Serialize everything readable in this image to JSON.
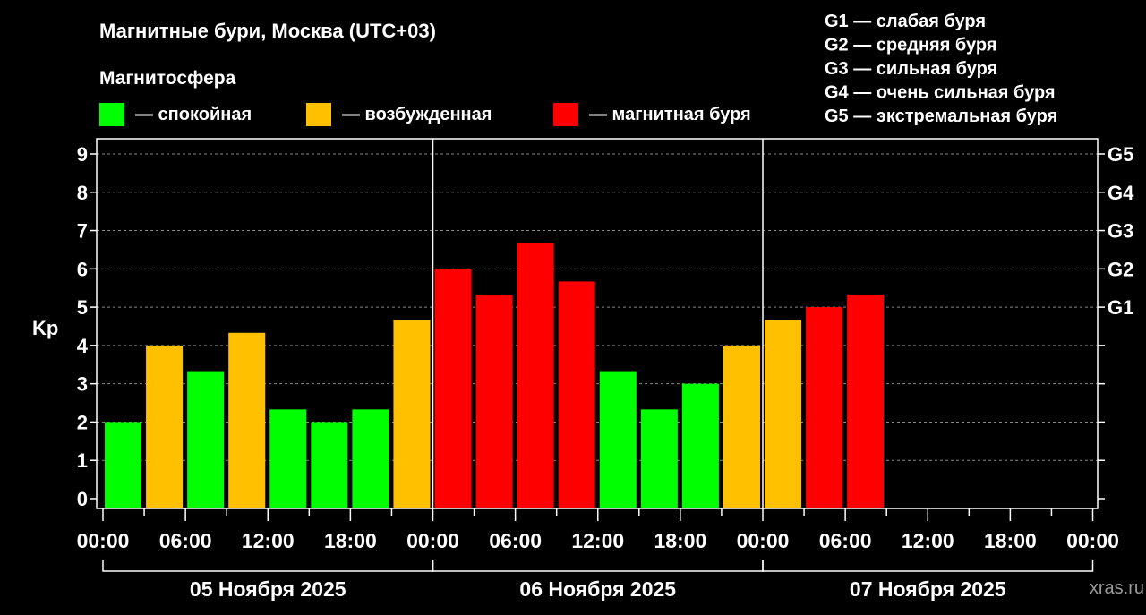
{
  "chart_data": {
    "type": "bar",
    "title": "Магнитные бури, Москва (UTC+03)",
    "legend_title": "Магнитосфера",
    "legend": [
      {
        "label": "— спокойная",
        "color": "#00ff00"
      },
      {
        "label": "— возбужденная",
        "color": "#ffc000"
      },
      {
        "label": "— магнитная буря",
        "color": "#ff0000"
      }
    ],
    "storm_scale": [
      "G1 — слабая буря",
      "G2 — средняя буря",
      "G3 — сильная буря",
      "G4 — очень сильная буря",
      "G5 — экстремальная буря"
    ],
    "ylabel": "Kp",
    "ylim": [
      0,
      9
    ],
    "yticks": [
      0,
      1,
      2,
      3,
      4,
      5,
      6,
      7,
      8,
      9
    ],
    "right_ticks": [
      {
        "value": 5,
        "label": "G1"
      },
      {
        "value": 6,
        "label": "G2"
      },
      {
        "value": 7,
        "label": "G3"
      },
      {
        "value": 8,
        "label": "G4"
      },
      {
        "value": 9,
        "label": "G5"
      }
    ],
    "xtick_labels": [
      "00:00",
      "06:00",
      "12:00",
      "18:00",
      "00:00",
      "06:00",
      "12:00",
      "18:00",
      "00:00",
      "06:00",
      "12:00",
      "18:00",
      "00:00"
    ],
    "days": [
      "05 Ноября 2025",
      "06 Ноября 2025",
      "07 Ноября 2025"
    ],
    "interval_hours": 3,
    "grid": true,
    "values": [
      2,
      4,
      3.33,
      4.33,
      2.33,
      2,
      2.33,
      4.67,
      6,
      5.33,
      6.67,
      5.67,
      3.33,
      2.33,
      3,
      4,
      4.67,
      5,
      5.33
    ],
    "levels": [
      "quiet",
      "active",
      "quiet",
      "active",
      "quiet",
      "quiet",
      "quiet",
      "active",
      "storm",
      "storm",
      "storm",
      "storm",
      "quiet",
      "quiet",
      "quiet",
      "active",
      "active",
      "storm",
      "storm"
    ],
    "level_colors": {
      "quiet": "#00ff00",
      "active": "#ffc000",
      "storm": "#ff0000"
    }
  },
  "watermark": "xras.ru"
}
